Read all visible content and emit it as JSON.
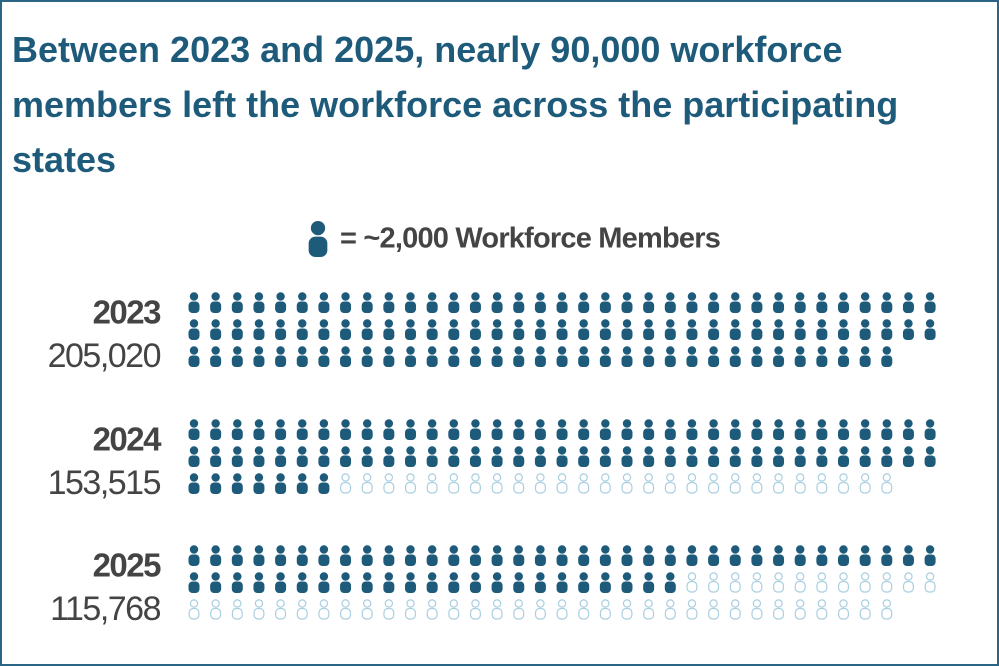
{
  "chart_data": {
    "type": "pictogram",
    "title": "Between 2023 and 2025, nearly 90,000 workforce members left the workforce across the participating states",
    "icon_label": "= ~2,000 Workforce Members",
    "icon_value": 2000,
    "categories": [
      "2023",
      "2024",
      "2025"
    ],
    "values": [
      205020,
      153515,
      115768
    ],
    "value_labels": [
      "205,020",
      "153,515",
      "115,768"
    ],
    "color": "#1e5b7b",
    "empty_color": "#a9cfe0"
  }
}
